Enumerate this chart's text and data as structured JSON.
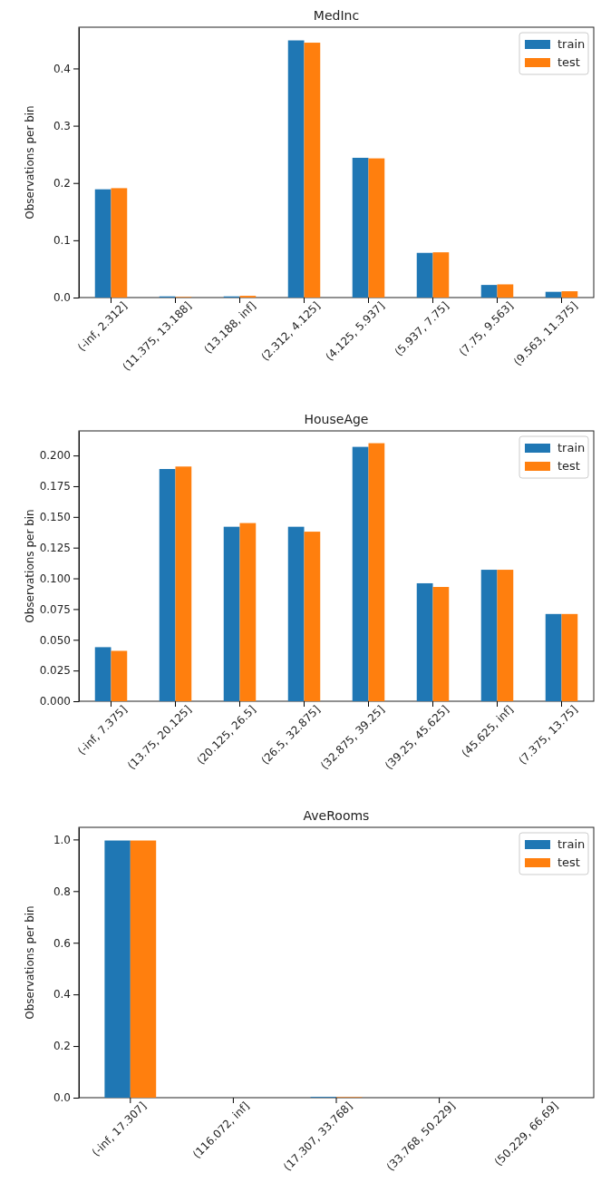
{
  "chart_data": [
    {
      "type": "bar",
      "title": "MedInc",
      "ylabel": "Observations per bin",
      "categories": [
        "(-inf, 2.312]",
        "(11.375, 13.188]",
        "(13.188, inf]",
        "(2.312, 4.125]",
        "(4.125, 5.937]",
        "(5.937, 7.75]",
        "(7.75, 9.563]",
        "(9.563, 11.375]"
      ],
      "series": [
        {
          "name": "train",
          "color": "#1f77b4",
          "values": [
            0.189,
            0.002,
            0.002,
            0.449,
            0.244,
            0.078,
            0.022,
            0.01
          ]
        },
        {
          "name": "test",
          "color": "#ff7f0e",
          "values": [
            0.191,
            0.001,
            0.003,
            0.445,
            0.243,
            0.079,
            0.023,
            0.011
          ]
        }
      ],
      "ylim": [
        0,
        0.472
      ],
      "yticks": [
        {
          "value": 0,
          "label": "0.0"
        },
        0.1,
        0.2,
        0.3,
        0.4
      ],
      "legend": "top right",
      "grid": false
    },
    {
      "type": "bar",
      "title": "HouseAge",
      "ylabel": "Observations per bin",
      "categories": [
        "(-inf, 7.375]",
        "(13.75, 20.125]",
        "(20.125, 26.5]",
        "(26.5, 32.875]",
        "(32.875, 39.25]",
        "(39.25, 45.625]",
        "(45.625, inf]",
        "(7.375, 13.75]"
      ],
      "series": [
        {
          "name": "train",
          "color": "#1f77b4",
          "values": [
            0.044,
            0.189,
            0.142,
            0.142,
            0.207,
            0.096,
            0.107,
            0.071
          ]
        },
        {
          "name": "test",
          "color": "#ff7f0e",
          "values": [
            0.041,
            0.191,
            0.145,
            0.138,
            0.21,
            0.093,
            0.107,
            0.071
          ]
        }
      ],
      "ylim": [
        0,
        0.22
      ],
      "yticks": [
        {
          "value": 0,
          "label": "0.000"
        },
        {
          "value": 0.025,
          "label": "0.025"
        },
        {
          "value": 0.05,
          "label": "0.050"
        },
        {
          "value": 0.075,
          "label": "0.075"
        },
        {
          "value": 0.1,
          "label": "0.100"
        },
        {
          "value": 0.125,
          "label": "0.125"
        },
        {
          "value": 0.15,
          "label": "0.150"
        },
        {
          "value": 0.175,
          "label": "0.175"
        },
        {
          "value": 0.2,
          "label": "0.200"
        }
      ],
      "legend": "top right",
      "grid": false
    },
    {
      "type": "bar",
      "title": "AveRooms",
      "ylabel": "Observations per bin",
      "categories": [
        "(-inf, 17.307]",
        "(116.072, inf]",
        "(17.307, 33.768]",
        "(33.768, 50.229]",
        "(50.229, 66.69]"
      ],
      "series": [
        {
          "name": "train",
          "color": "#1f77b4",
          "values": [
            0.996,
            0,
            0.003,
            0,
            0
          ]
        },
        {
          "name": "test",
          "color": "#ff7f0e",
          "values": [
            0.996,
            0,
            0.002,
            0,
            0
          ]
        }
      ],
      "ylim": [
        0,
        1.047
      ],
      "yticks": [
        {
          "value": 0,
          "label": "0.0"
        },
        {
          "value": 0.2,
          "label": "0.2"
        },
        {
          "value": 0.4,
          "label": "0.4"
        },
        {
          "value": 0.6,
          "label": "0.6"
        },
        {
          "value": 0.8,
          "label": "0.8"
        },
        {
          "value": 1,
          "label": "1.0"
        }
      ],
      "legend": "top right",
      "grid": false
    }
  ]
}
